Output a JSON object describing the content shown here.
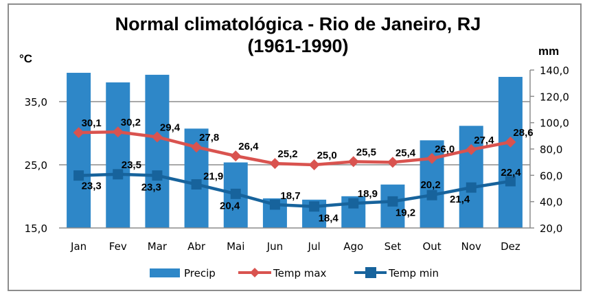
{
  "chart_data": {
    "type": "bar+line",
    "title_line1": "Normal climatológica - Rio de Janeiro, RJ",
    "title_line2": "(1961-1990)",
    "categories": [
      "Jan",
      "Fev",
      "Mar",
      "Abr",
      "Mai",
      "Jun",
      "Jul",
      "Ago",
      "Set",
      "Out",
      "Nov",
      "Dez"
    ],
    "left_axis": {
      "label": "°C",
      "range": [
        15,
        40
      ],
      "ticks": [
        15,
        25,
        35
      ],
      "tick_labels": [
        "15,0",
        "25,0",
        "35,0"
      ],
      "gridlines": true
    },
    "right_axis": {
      "label": "mm",
      "range": [
        20,
        140
      ],
      "ticks": [
        20,
        40,
        60,
        80,
        100,
        120,
        140
      ],
      "tick_labels": [
        "20,0",
        "40,0",
        "60,0",
        "80,0",
        "100,0",
        "120,0",
        "140,0"
      ]
    },
    "series": [
      {
        "name": "Precip",
        "type": "bar",
        "axis": "right",
        "color": "#2e87c8",
        "values": [
          137.9,
          130.6,
          136.4,
          95.5,
          69.8,
          42.5,
          41.5,
          44.1,
          53.0,
          86.6,
          97.6,
          134.8
        ]
      },
      {
        "name": "Temp max",
        "type": "line",
        "axis": "left",
        "marker": "diamond",
        "color": "#d9534f",
        "values": [
          30.1,
          30.2,
          29.4,
          27.8,
          26.4,
          25.2,
          25.0,
          25.5,
          25.4,
          26.0,
          27.4,
          28.6
        ],
        "labels": [
          "30,1",
          "30,2",
          "29,4",
          "27,8",
          "26,4",
          "25,2",
          "25,0",
          "25,5",
          "25,4",
          "26,0",
          "27,4",
          "28,6"
        ]
      },
      {
        "name": "Temp min",
        "type": "line",
        "axis": "left",
        "marker": "square",
        "color": "#17639c",
        "values": [
          23.3,
          23.5,
          23.3,
          21.9,
          20.4,
          18.7,
          18.4,
          18.9,
          19.2,
          20.2,
          21.4,
          22.4
        ],
        "labels": [
          "23,3",
          "23,5",
          "23,3",
          "21,9",
          "20,4",
          "18,7",
          "18,4",
          "18,9",
          "19,2",
          "20,2",
          "21,4",
          "22,4"
        ]
      }
    ],
    "legend": {
      "position": "bottom",
      "entries": [
        "Precip",
        "Temp max",
        "Temp min"
      ]
    }
  }
}
